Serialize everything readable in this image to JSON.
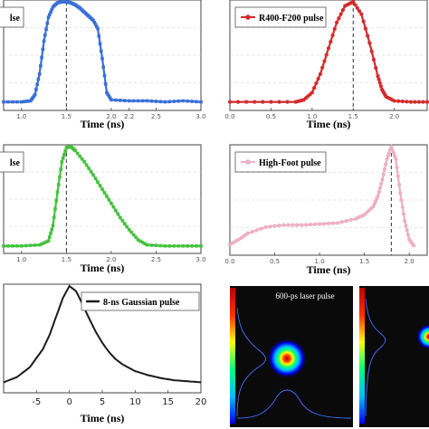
{
  "chart_data": [
    {
      "type": "line",
      "panel": "top-left",
      "legend": "lse",
      "legend_position": "top-left",
      "color": "#3a6fd8",
      "marker": "square",
      "xlabel": "Time (ns)",
      "xlim": [
        0.8,
        3.0
      ],
      "xticks": [
        "1.0",
        "1.5",
        "2.0",
        "2.2",
        "2.5",
        "3.0"
      ],
      "ylim": [
        0,
        1.0
      ],
      "peak_x": 1.5,
      "series": [
        {
          "x": [
            0.8,
            1.0,
            1.1,
            1.15,
            1.2,
            1.25,
            1.3,
            1.35,
            1.4,
            1.45,
            1.5,
            1.55,
            1.6,
            1.65,
            1.7,
            1.75,
            1.8,
            1.85,
            1.9,
            1.95,
            2.0,
            2.2,
            2.4,
            2.6,
            2.8,
            3.0
          ],
          "y": [
            0.03,
            0.03,
            0.04,
            0.1,
            0.3,
            0.62,
            0.85,
            0.95,
            0.99,
            1.0,
            1.0,
            0.99,
            0.97,
            0.94,
            0.9,
            0.86,
            0.82,
            0.74,
            0.45,
            0.12,
            0.05,
            0.04,
            0.04,
            0.03,
            0.04,
            0.03
          ]
        }
      ]
    },
    {
      "type": "line",
      "panel": "top-right",
      "legend": "R400-F200 pulse",
      "legend_position": "top-left",
      "color": "#d42b2b",
      "marker": "circle",
      "xlabel": "Time (ns)",
      "xlim": [
        0.0,
        2.4
      ],
      "xticks": [
        "0.0",
        "0.5",
        "1.0",
        "1.5",
        "2.0"
      ],
      "ylim": [
        0,
        1.0
      ],
      "peak_x": 1.5,
      "series": [
        {
          "x": [
            0.0,
            0.4,
            0.8,
            0.9,
            1.0,
            1.1,
            1.2,
            1.3,
            1.4,
            1.5,
            1.6,
            1.7,
            1.8,
            1.85,
            1.9,
            2.0,
            2.2,
            2.4
          ],
          "y": [
            0.03,
            0.03,
            0.03,
            0.05,
            0.12,
            0.3,
            0.55,
            0.8,
            0.96,
            1.0,
            0.88,
            0.6,
            0.28,
            0.15,
            0.08,
            0.04,
            0.03,
            0.03
          ]
        }
      ]
    },
    {
      "type": "line",
      "panel": "middle-left",
      "legend": "lse",
      "legend_position": "top-left",
      "color": "#44c23e",
      "marker": "square",
      "xlabel": "Time (ns)",
      "xlim": [
        0.8,
        3.0
      ],
      "xticks": [
        "1.0",
        "1.5",
        "2.0",
        "2.5",
        "3.0"
      ],
      "ylim": [
        0,
        1.0
      ],
      "peak_x": 1.5,
      "series": [
        {
          "x": [
            0.8,
            1.0,
            1.2,
            1.3,
            1.35,
            1.4,
            1.45,
            1.5,
            1.55,
            1.6,
            1.7,
            1.8,
            1.9,
            2.0,
            2.1,
            2.2,
            2.3,
            2.4,
            2.6,
            2.8,
            3.0
          ],
          "y": [
            0.02,
            0.02,
            0.03,
            0.07,
            0.22,
            0.55,
            0.85,
            0.99,
            1.0,
            0.96,
            0.85,
            0.72,
            0.58,
            0.44,
            0.3,
            0.18,
            0.08,
            0.03,
            0.02,
            0.02,
            0.02
          ]
        }
      ]
    },
    {
      "type": "line",
      "panel": "middle-right",
      "legend": "High-Foot pulse",
      "legend_position": "top-left",
      "color": "#ecb0c4",
      "marker": "circle",
      "xlabel": "Time (ns)",
      "xlim": [
        0.0,
        2.2
      ],
      "xticks": [
        "0.0",
        "0.5",
        "1.0",
        "1.5",
        "2.0"
      ],
      "ylim": [
        0,
        1.0
      ],
      "peak_x": 1.8,
      "series": [
        {
          "x": [
            0.0,
            0.1,
            0.2,
            0.4,
            0.6,
            0.8,
            1.0,
            1.2,
            1.4,
            1.5,
            1.6,
            1.65,
            1.7,
            1.75,
            1.8,
            1.85,
            1.9,
            1.95,
            2.0,
            2.05
          ],
          "y": [
            0.05,
            0.1,
            0.16,
            0.22,
            0.24,
            0.24,
            0.25,
            0.26,
            0.3,
            0.34,
            0.42,
            0.52,
            0.68,
            0.88,
            1.0,
            0.88,
            0.55,
            0.28,
            0.1,
            0.04
          ]
        }
      ]
    },
    {
      "type": "line",
      "panel": "bottom-left",
      "legend": "8-ns Gaussian pulse",
      "legend_position": "top-right",
      "color": "#1a1a1a",
      "marker": "none",
      "xlabel": "Time (ns)",
      "xlim": [
        -10,
        20
      ],
      "xticks": [
        "-5",
        "0",
        "5",
        "10",
        "15",
        "20"
      ],
      "ylim": [
        0,
        1.0
      ],
      "series": [
        {
          "x": [
            -10,
            -8,
            -6,
            -4,
            -3,
            -2,
            -1,
            0,
            1,
            2,
            3,
            4,
            5,
            6,
            7,
            8,
            10,
            12,
            14,
            16,
            18,
            20
          ],
          "y": [
            0.05,
            0.1,
            0.2,
            0.38,
            0.52,
            0.7,
            0.88,
            1.0,
            0.95,
            0.82,
            0.68,
            0.55,
            0.44,
            0.35,
            0.28,
            0.23,
            0.16,
            0.12,
            0.09,
            0.07,
            0.06,
            0.05
          ]
        }
      ]
    }
  ],
  "beam_image": {
    "label": "600-ps laser pulse",
    "background": "#0a0a0a",
    "colormap": [
      "#0000ff",
      "#00bfff",
      "#00ff80",
      "#ffff00",
      "#ff3000",
      "#c00000"
    ]
  }
}
